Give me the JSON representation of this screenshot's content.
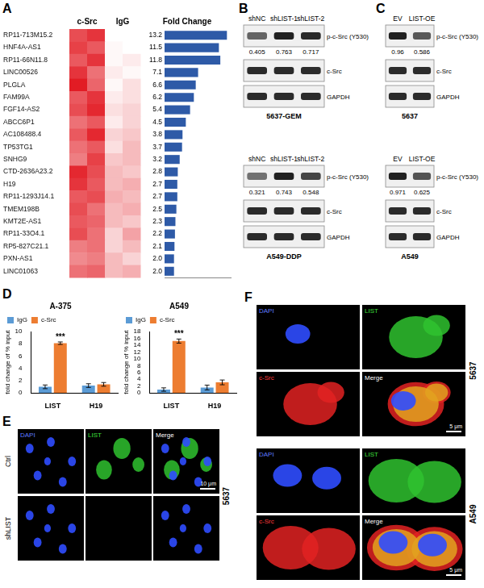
{
  "panel_labels": [
    "A",
    "B",
    "C",
    "D",
    "E",
    "F"
  ],
  "chart_data": [
    {
      "type": "bar",
      "orientation": "horizontal",
      "title": "Fold Change",
      "categories": [
        "RP11-713M15.2",
        "HNF4A-AS1",
        "RP11-66N11.8",
        "LINC00526",
        "PLGLA",
        "FAM99A",
        "FGF14-AS2",
        "ABCC6P1",
        "AC108488.4",
        "TP53TG1",
        "SNHG9",
        "CTD-2636A23.2",
        "H19",
        "RP11-1293J14.1",
        "TMEM198B",
        "KMT2E-AS1",
        "RP11-33O4.1",
        "RP5-827C21.1",
        "PXN-AS1",
        "LINC01063"
      ],
      "values": [
        13.2,
        11.5,
        11.8,
        7.1,
        6.6,
        6.2,
        5.4,
        4.5,
        3.8,
        3.7,
        3.2,
        2.8,
        2.7,
        2.7,
        2.5,
        2.3,
        2.2,
        2.1,
        2.0,
        2.0
      ],
      "value_labels": [
        "13.2",
        "11.5",
        "11.8",
        "7.1",
        "6.6",
        "6.2",
        "5.4",
        "4.5",
        "3.8",
        "3.7",
        "3.2",
        "2.8",
        "2.7",
        "2.7",
        "2.5",
        "2.3",
        "2.2",
        "2.1",
        "2.0",
        "2.0"
      ],
      "color": "#2e5aa7",
      "data_labels": true,
      "tick_labels": "y",
      "grid": false,
      "xlim": [
        0,
        14
      ],
      "heatmap": {
        "groups": [
          "c-Src",
          "IgG"
        ],
        "cells": [
          [
            0.75,
            0.85,
            0.02,
            0.02
          ],
          [
            0.8,
            0.7,
            0.05,
            0.02
          ],
          [
            0.7,
            0.85,
            0.05,
            0.1
          ],
          [
            0.85,
            0.6,
            0.1,
            0.05
          ],
          [
            0.95,
            0.65,
            0.05,
            0.15
          ],
          [
            0.7,
            0.85,
            0.1,
            0.15
          ],
          [
            0.75,
            0.9,
            0.15,
            0.2
          ],
          [
            0.6,
            0.7,
            0.1,
            0.2
          ],
          [
            0.7,
            0.9,
            0.2,
            0.25
          ],
          [
            0.6,
            0.7,
            0.15,
            0.3
          ],
          [
            0.55,
            0.8,
            0.25,
            0.3
          ],
          [
            0.9,
            0.75,
            0.3,
            0.25
          ],
          [
            0.85,
            0.7,
            0.3,
            0.35
          ],
          [
            0.7,
            0.75,
            0.35,
            0.3
          ],
          [
            0.75,
            0.6,
            0.3,
            0.35
          ],
          [
            0.7,
            0.65,
            0.3,
            0.25
          ],
          [
            0.75,
            0.6,
            0.2,
            0.4
          ],
          [
            0.55,
            0.6,
            0.2,
            0.3
          ],
          [
            0.5,
            0.55,
            0.3,
            0.2
          ],
          [
            0.6,
            0.65,
            0.3,
            0.35
          ]
        ]
      }
    },
    {
      "type": "bar",
      "title": "A-375",
      "y_label": "fold change of % input",
      "categories": [
        "LIST",
        "H19"
      ],
      "series": [
        {
          "name": "IgG",
          "color": "#5b9bd5",
          "values": [
            1.0,
            1.2
          ],
          "errors": [
            0.3,
            0.3
          ]
        },
        {
          "name": "c-Src",
          "color": "#ed7d31",
          "values": [
            8.1,
            1.4
          ],
          "errors": [
            0.2,
            0.3
          ]
        }
      ],
      "ylim": [
        0,
        10
      ],
      "yticks": [
        0,
        2,
        4,
        6,
        8,
        10
      ],
      "grid": false,
      "legend": "top",
      "annotations": [
        {
          "text": "***",
          "category": "LIST",
          "series": "c-Src"
        }
      ]
    },
    {
      "type": "bar",
      "title": "A549",
      "y_label": "fold change of % input",
      "categories": [
        "LIST",
        "H19"
      ],
      "series": [
        {
          "name": "IgG",
          "color": "#5b9bd5",
          "values": [
            1.0,
            1.6
          ],
          "errors": [
            0.5,
            0.7
          ]
        },
        {
          "name": "c-Src",
          "color": "#ed7d31",
          "values": [
            15.2,
            3.1
          ],
          "errors": [
            0.6,
            0.7
          ]
        }
      ],
      "ylim": [
        0,
        18
      ],
      "yticks": [
        0,
        2,
        4,
        6,
        8,
        10,
        12,
        14,
        16,
        18
      ],
      "grid": false,
      "legend": "top",
      "annotations": [
        {
          "text": "***",
          "category": "LIST",
          "series": "c-Src"
        }
      ]
    }
  ],
  "blots": {
    "B": [
      {
        "cell_line": "5637-GEM",
        "lanes": [
          "shNC",
          "shLIST-1",
          "shLIST-2"
        ],
        "rows": [
          "p-c-Src (Y530)",
          "c-Src",
          "GAPDH"
        ],
        "quantification": [
          0.405,
          0.763,
          0.717
        ]
      },
      {
        "cell_line": "A549-DDP",
        "lanes": [
          "shNC",
          "shLIST-1",
          "shLIST-2"
        ],
        "rows": [
          "p-c-Src (Y530)",
          "c-Src",
          "GAPDH"
        ],
        "quantification": [
          0.321,
          0.743,
          0.548
        ]
      }
    ],
    "C": [
      {
        "cell_line": "5637",
        "lanes": [
          "EV",
          "LIST-OE"
        ],
        "rows": [
          "p-c-Src (Y530)",
          "c-Src",
          "GAPDH"
        ],
        "quantification": [
          0.96,
          0.586
        ]
      },
      {
        "cell_line": "A549",
        "lanes": [
          "EV",
          "LIST-OE"
        ],
        "rows": [
          "p-c-Src (Y530)",
          "c-Src",
          "GAPDH"
        ],
        "quantification": [
          0.971,
          0.625
        ]
      }
    ]
  },
  "image_panels": {
    "E": {
      "channels": [
        "DAPI",
        "LIST",
        "Merge"
      ],
      "conditions": [
        "Ctrl",
        "shLIST"
      ],
      "cell_line": "5637",
      "scale_bar": "10 μm"
    },
    "F": [
      {
        "channels": [
          "DAPI",
          "LIST",
          "c-Src",
          "Merge"
        ],
        "cell_line": "5637",
        "scale_bar": "5 μm"
      },
      {
        "channels": [
          "DAPI",
          "LIST",
          "c-Src",
          "Merge"
        ],
        "cell_line": "A549",
        "scale_bar": "5 μm"
      }
    ]
  }
}
